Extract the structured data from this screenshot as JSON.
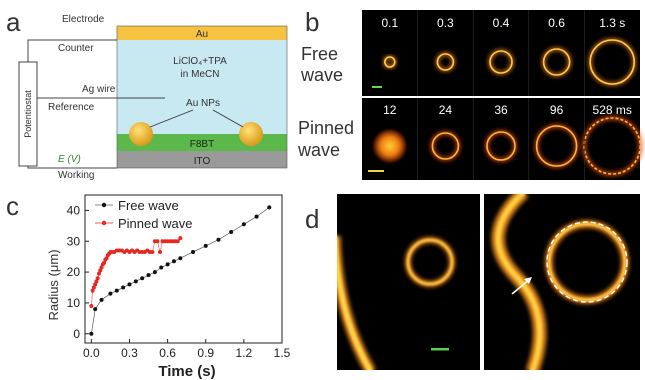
{
  "panels": {
    "a": {
      "label": "a",
      "electrode": "Electrode",
      "counter": "Counter",
      "au": "Au",
      "electrolyte_line1": "LiClO₄+TPA",
      "electrolyte_line2": "in MeCN",
      "ag_wire": "Ag wire",
      "reference": "Reference",
      "au_nps": "Au NPs",
      "potentiostat": "Potentiostat",
      "f8bt": "F8BT",
      "ito": "ITO",
      "e_label": "E (V)",
      "working": "Working",
      "colors": {
        "au_layer": "#f5c242",
        "electrolyte": "#c8e9f2",
        "f8bt": "#5cb84a",
        "ito": "#9a9a9a",
        "nanoparticle": "#e8b32c"
      }
    },
    "b": {
      "label": "b",
      "free_label_1": "Free",
      "free_label_2": "wave",
      "pinned_label_1": "Pinned",
      "pinned_label_2": "wave",
      "free_times": [
        "0.1",
        "0.3",
        "0.4",
        "0.6",
        "1.3 s"
      ],
      "pinned_times": [
        "12",
        "24",
        "36",
        "96",
        "528 ms"
      ]
    },
    "c": {
      "label": "c",
      "ylabel": "Radius (μm)",
      "xlabel": "Time (s)",
      "legend_free": "Free wave",
      "legend_pinned": "Pinned wave",
      "x_ticks": [
        "0.0",
        "0.3",
        "0.6",
        "0.9",
        "1.2",
        "1.5"
      ],
      "y_ticks": [
        "0",
        "10",
        "20",
        "30",
        "40"
      ]
    },
    "d": {
      "label": "d"
    }
  },
  "chart_data": {
    "type": "scatter",
    "xlabel": "Time (s)",
    "ylabel": "Radius (μm)",
    "xlim": [
      -0.05,
      1.5
    ],
    "ylim": [
      -3,
      45
    ],
    "grid": false,
    "legend_position": "top-left",
    "series": [
      {
        "name": "Free wave",
        "color": "#111111",
        "x": [
          0.0,
          0.03,
          0.08,
          0.15,
          0.2,
          0.25,
          0.3,
          0.35,
          0.4,
          0.45,
          0.5,
          0.55,
          0.6,
          0.65,
          0.7,
          0.8,
          0.9,
          1.0,
          1.1,
          1.2,
          1.3,
          1.4
        ],
        "y": [
          0.0,
          8.0,
          11.0,
          13.0,
          14.0,
          15.0,
          16.0,
          17.0,
          18.0,
          19.0,
          20.0,
          21.5,
          22.5,
          23.5,
          24.5,
          26.5,
          28.5,
          30.5,
          33.0,
          35.5,
          38.0,
          41.0
        ]
      },
      {
        "name": "Pinned wave",
        "color": "#e8281e",
        "x": [
          0.0,
          0.01,
          0.02,
          0.03,
          0.04,
          0.05,
          0.06,
          0.07,
          0.08,
          0.09,
          0.1,
          0.11,
          0.12,
          0.13,
          0.14,
          0.15,
          0.16,
          0.18,
          0.2,
          0.22,
          0.24,
          0.26,
          0.28,
          0.3,
          0.32,
          0.34,
          0.36,
          0.38,
          0.4,
          0.42,
          0.44,
          0.46,
          0.48,
          0.5,
          0.52,
          0.54,
          0.56,
          0.58,
          0.6,
          0.62,
          0.64,
          0.66,
          0.68,
          0.7
        ],
        "y": [
          9.0,
          14.0,
          15.0,
          16.0,
          17.0,
          18.0,
          19.5,
          20.5,
          21.5,
          22.5,
          23.0,
          24.0,
          24.5,
          25.5,
          26.0,
          26.5,
          26.5,
          26.5,
          27.0,
          27.0,
          27.0,
          26.5,
          27.0,
          26.5,
          27.0,
          26.5,
          27.0,
          26.5,
          26.5,
          26.5,
          27.0,
          26.5,
          26.5,
          30.0,
          30.0,
          26.5,
          30.0,
          30.0,
          30.0,
          30.0,
          30.0,
          30.0,
          30.0,
          31.0
        ]
      }
    ]
  }
}
